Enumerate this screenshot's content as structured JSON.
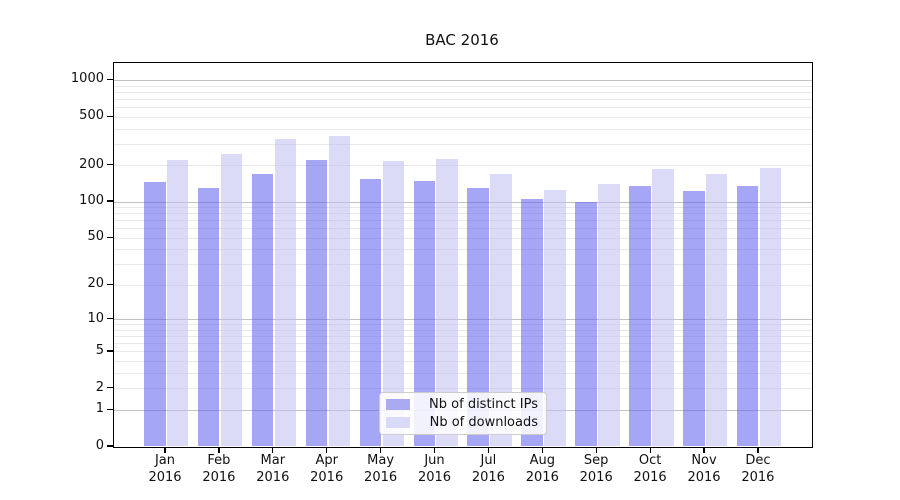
{
  "chart_data": {
    "type": "bar",
    "title": "BAC 2016",
    "categories": [
      "Jan",
      "Feb",
      "Mar",
      "Apr",
      "May",
      "Jun",
      "Jul",
      "Aug",
      "Sep",
      "Oct",
      "Nov",
      "Dec"
    ],
    "category_year": "2016",
    "series": [
      {
        "name": "Nb of distinct IPs",
        "legend_color": "#a9a9f4",
        "fill": "rgba(97,97,241,0.56)",
        "values": [
          145,
          130,
          170,
          220,
          155,
          148,
          130,
          105,
          100,
          135,
          122,
          135
        ]
      },
      {
        "name": "Nb of downloads",
        "legend_color": "#d9d9f8",
        "fill": "rgba(190,190,243,0.56)",
        "values": [
          220,
          245,
          330,
          350,
          215,
          225,
          170,
          125,
          140,
          186,
          170,
          188
        ]
      }
    ],
    "xlabel": "",
    "ylabel": "",
    "yscale": "log1p",
    "y_ticks": [
      0,
      1,
      2,
      5,
      10,
      20,
      50,
      100,
      200,
      500,
      1000
    ],
    "ylim": [
      0,
      1380
    ],
    "grid": true,
    "legend_position": "lower center"
  }
}
